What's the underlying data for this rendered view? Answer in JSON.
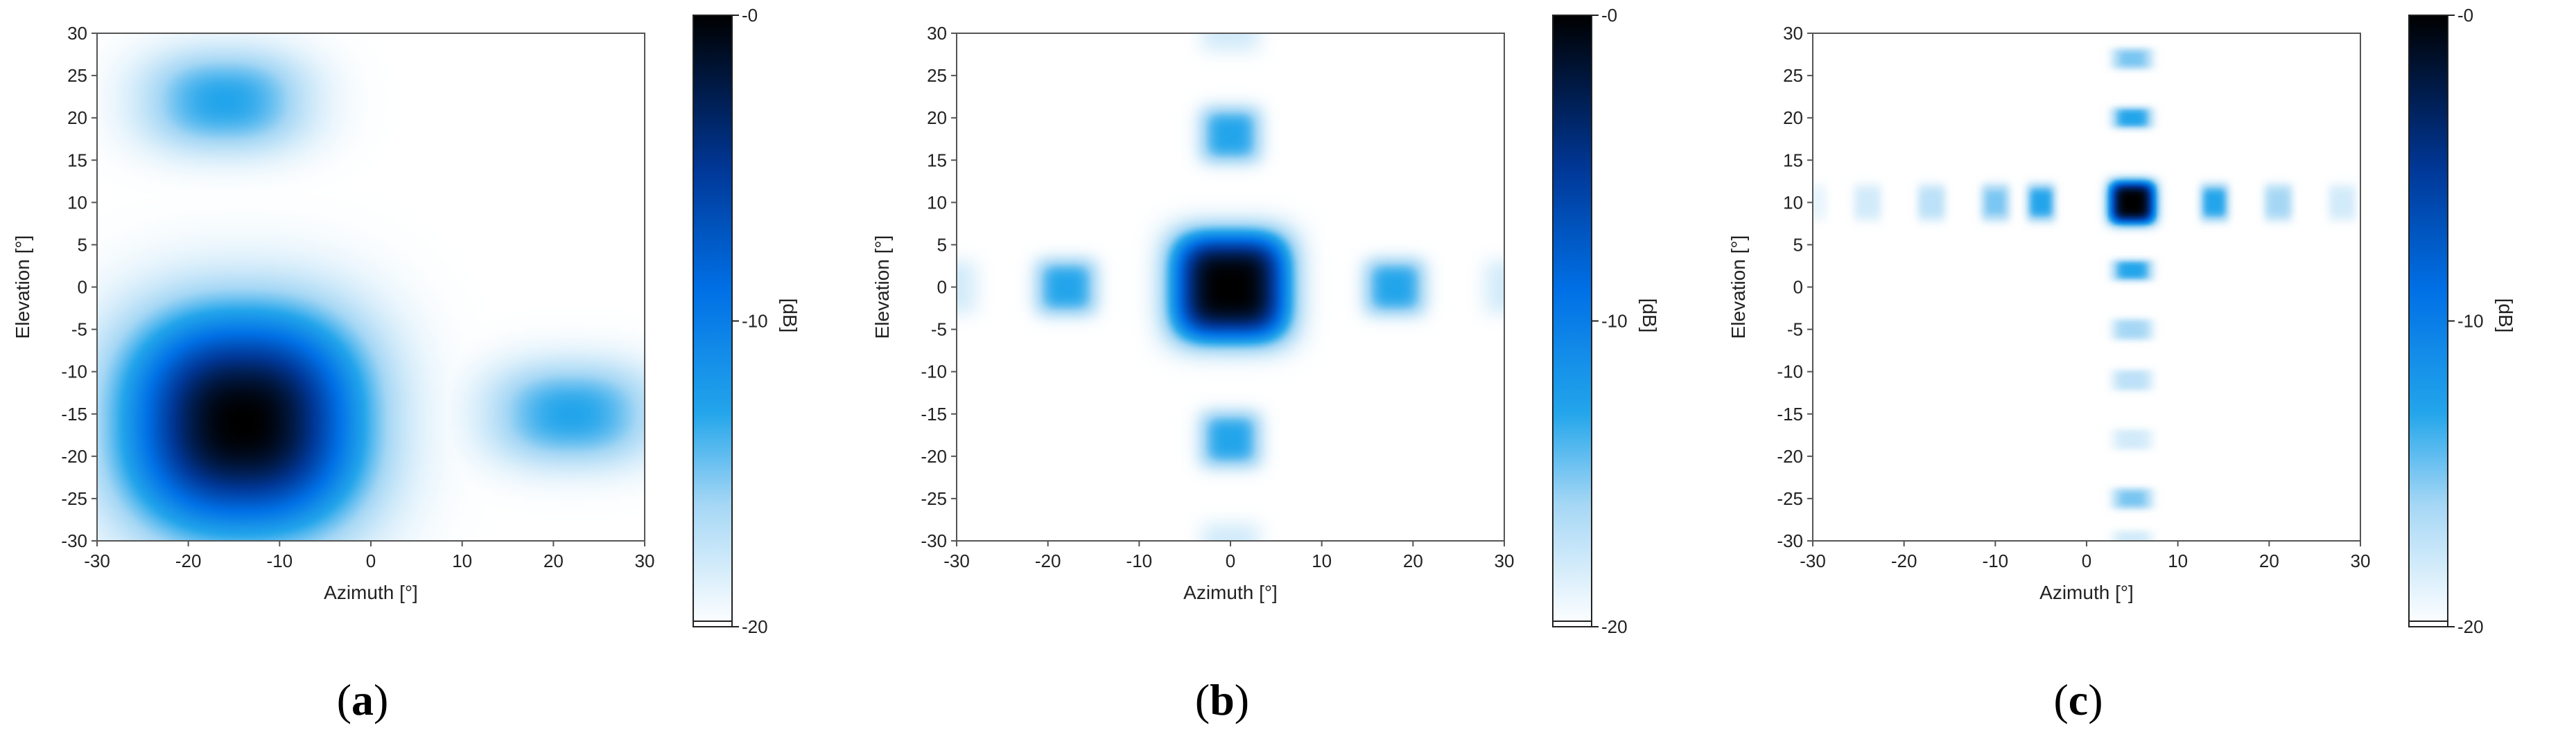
{
  "chart_data": [
    {
      "type": "heatmap",
      "panel_label": "a",
      "xlabel": "Azimuth [°]",
      "ylabel": "Elevation [°]",
      "xlim": [
        -30,
        30
      ],
      "ylim": [
        -30,
        30
      ],
      "xticks": [
        -30,
        -20,
        -10,
        0,
        10,
        20,
        30
      ],
      "yticks": [
        30,
        25,
        20,
        15,
        10,
        5,
        0,
        -5,
        -10,
        -15,
        -20,
        -25,
        -30
      ],
      "colorbar": {
        "label": "[dB]",
        "ticks": [
          0,
          -10,
          -20
        ],
        "range": [
          -20,
          0
        ]
      },
      "main_beam": {
        "azimuth": -14,
        "elevation": -16,
        "peak_db": 0
      },
      "side_lobes": [
        {
          "azimuth": -16,
          "elevation": 22,
          "level_db": -13
        },
        {
          "azimuth": 22,
          "elevation": -15,
          "level_db": -13
        }
      ]
    },
    {
      "type": "heatmap",
      "panel_label": "b",
      "xlabel": "Azimuth [°]",
      "ylabel": "Elevation [°]",
      "xlim": [
        -30,
        30
      ],
      "ylim": [
        -30,
        30
      ],
      "xticks": [
        -30,
        -20,
        -10,
        0,
        10,
        20,
        30
      ],
      "yticks": [
        30,
        25,
        20,
        15,
        10,
        5,
        0,
        -5,
        -10,
        -15,
        -20,
        -25,
        -30
      ],
      "colorbar": {
        "label": "[dB]",
        "ticks": [
          0,
          -10,
          -20
        ],
        "range": [
          -20,
          0
        ]
      },
      "main_beam": {
        "azimuth": 0,
        "elevation": 0,
        "peak_db": 0
      },
      "side_lobes": [
        {
          "azimuth": 0,
          "elevation": 18,
          "level_db": -13
        },
        {
          "azimuth": 0,
          "elevation": -18,
          "level_db": -13
        },
        {
          "azimuth": -18,
          "elevation": 0,
          "level_db": -13
        },
        {
          "azimuth": 18,
          "elevation": 0,
          "level_db": -13
        },
        {
          "azimuth": 0,
          "elevation": 31,
          "level_db": -18
        },
        {
          "azimuth": 0,
          "elevation": -31,
          "level_db": -18
        },
        {
          "azimuth": -31,
          "elevation": 0,
          "level_db": -18
        },
        {
          "azimuth": 31,
          "elevation": 0,
          "level_db": -18
        }
      ]
    },
    {
      "type": "heatmap",
      "panel_label": "c",
      "xlabel": "Azimuth [°]",
      "ylabel": "Elevation [°]",
      "xlim": [
        -30,
        30
      ],
      "ylim": [
        -30,
        30
      ],
      "xticks": [
        -30,
        -20,
        -10,
        0,
        10,
        20,
        30
      ],
      "yticks": [
        30,
        25,
        20,
        15,
        10,
        5,
        0,
        -5,
        -10,
        -15,
        -20,
        -25,
        -30
      ],
      "colorbar": {
        "label": "[dB]",
        "ticks": [
          0,
          -10,
          -20
        ],
        "range": [
          -20,
          0
        ]
      },
      "main_beam": {
        "azimuth": 5,
        "elevation": 10,
        "peak_db": 0
      },
      "side_lobes": [
        {
          "azimuth": -5,
          "elevation": 10,
          "level_db": -13
        },
        {
          "azimuth": 14,
          "elevation": 10,
          "level_db": -13
        },
        {
          "azimuth": -10,
          "elevation": 10,
          "level_db": -15
        },
        {
          "azimuth": 21,
          "elevation": 10,
          "level_db": -16
        },
        {
          "azimuth": -17,
          "elevation": 10,
          "level_db": -17
        },
        {
          "azimuth": 28,
          "elevation": 10,
          "level_db": -18
        },
        {
          "azimuth": -24,
          "elevation": 10,
          "level_db": -18
        },
        {
          "azimuth": -30,
          "elevation": 10,
          "level_db": -19
        },
        {
          "azimuth": 5,
          "elevation": 20,
          "level_db": -13
        },
        {
          "azimuth": 5,
          "elevation": 2,
          "level_db": -13
        },
        {
          "azimuth": 5,
          "elevation": 27,
          "level_db": -15
        },
        {
          "azimuth": 5,
          "elevation": -5,
          "level_db": -16
        },
        {
          "azimuth": 5,
          "elevation": -11,
          "level_db": -17
        },
        {
          "azimuth": 5,
          "elevation": -18,
          "level_db": -18
        },
        {
          "azimuth": 5,
          "elevation": -25,
          "level_db": -15
        },
        {
          "azimuth": 5,
          "elevation": -30,
          "level_db": -18
        }
      ]
    }
  ]
}
